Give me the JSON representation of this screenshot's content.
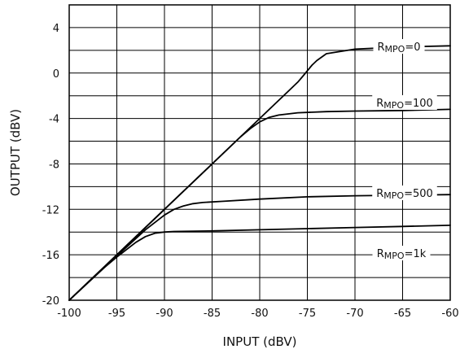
{
  "chart_data": {
    "type": "line",
    "title": "",
    "xlabel": "INPUT (dBV)",
    "ylabel": "OUTPUT  (dBV)",
    "xlim": [
      -100,
      -60
    ],
    "ylim": [
      -20,
      6
    ],
    "grid": true,
    "x_ticks": [
      -100,
      -95,
      -90,
      -85,
      -80,
      -75,
      -70,
      -65,
      -60
    ],
    "y_ticks": [
      -20,
      -16,
      -12,
      -8,
      -4,
      0,
      4
    ],
    "series": [
      {
        "name": "R_MPO=0",
        "label_main": "R",
        "label_sub": "MPO",
        "label_value": "=0",
        "x": [
          -100,
          -95,
          -90,
          -85,
          -80,
          -77,
          -76,
          -75.5,
          -75,
          -74.5,
          -74,
          -73,
          -70,
          -65,
          -60
        ],
        "y": [
          -20,
          -16,
          -12,
          -8,
          -4,
          -1.6,
          -0.8,
          -0.3,
          0.2,
          0.7,
          1.1,
          1.7,
          2.1,
          2.3,
          2.4
        ]
      },
      {
        "name": "R_MPO=100",
        "label_main": "R",
        "label_sub": "MPO",
        "label_value": "=100",
        "x": [
          -100,
          -95,
          -90,
          -85,
          -82,
          -81,
          -80,
          -79,
          -78,
          -76,
          -73,
          -70,
          -65,
          -60
        ],
        "y": [
          -20,
          -16,
          -12,
          -8,
          -5.6,
          -4.9,
          -4.3,
          -3.9,
          -3.7,
          -3.5,
          -3.4,
          -3.35,
          -3.3,
          -3.2
        ]
      },
      {
        "name": "R_MPO=500",
        "label_main": "R",
        "label_sub": "MPO",
        "label_value": "=500",
        "x": [
          -100,
          -95,
          -92,
          -90,
          -89,
          -88,
          -87,
          -86,
          -84,
          -80,
          -75,
          -70,
          -65,
          -60
        ],
        "y": [
          -20,
          -16.1,
          -13.8,
          -12.5,
          -12.0,
          -11.7,
          -11.5,
          -11.4,
          -11.3,
          -11.1,
          -10.9,
          -10.8,
          -10.75,
          -10.7
        ]
      },
      {
        "name": "R_MPO=1k",
        "label_main": "R",
        "label_sub": "MPO",
        "label_value": "=1k",
        "x": [
          -100,
          -97,
          -95,
          -93,
          -92,
          -91,
          -90,
          -89,
          -85,
          -80,
          -75,
          -70,
          -65,
          -60
        ],
        "y": [
          -20,
          -17.6,
          -16.2,
          -14.9,
          -14.4,
          -14.1,
          -14.0,
          -13.95,
          -13.9,
          -13.8,
          -13.7,
          -13.6,
          -13.5,
          -13.4
        ]
      }
    ]
  }
}
